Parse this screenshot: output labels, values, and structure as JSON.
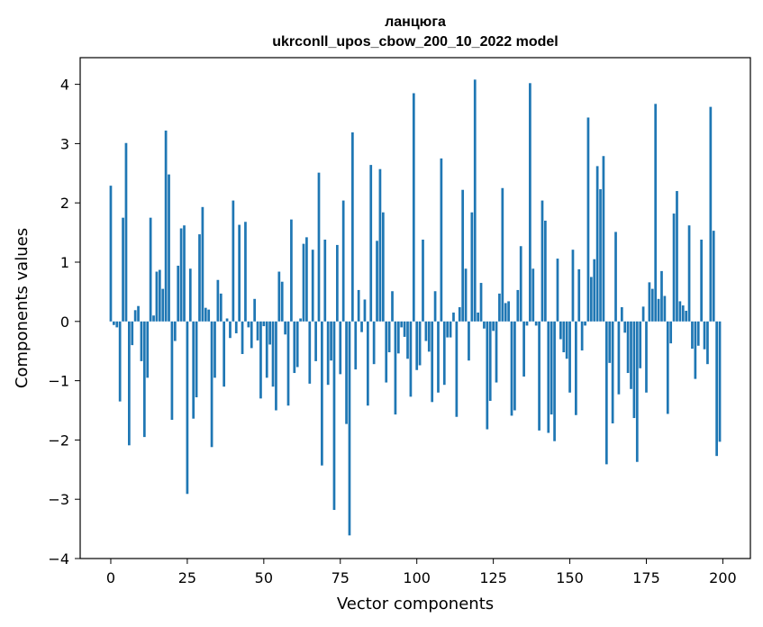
{
  "chart_data": {
    "type": "bar",
    "title": "ланцюга",
    "subtitle": "ukrconll_upos_cbow_200_10_2022 model",
    "xlabel": "Vector components",
    "ylabel": "Components values",
    "xlim": [
      -10,
      209
    ],
    "ylim": [
      -4,
      4.45
    ],
    "xticks": [
      0,
      25,
      50,
      75,
      100,
      125,
      150,
      175,
      200
    ],
    "yticks": [
      -4,
      -3,
      -2,
      -1,
      0,
      1,
      2,
      3,
      4
    ],
    "bar_color": "#1f77b4",
    "grid": false,
    "legend": "none",
    "x": [
      0,
      1,
      2,
      3,
      4,
      5,
      6,
      7,
      8,
      9,
      10,
      11,
      12,
      13,
      14,
      15,
      16,
      17,
      18,
      19,
      20,
      21,
      22,
      23,
      24,
      25,
      26,
      27,
      28,
      29,
      30,
      31,
      32,
      33,
      34,
      35,
      36,
      37,
      38,
      39,
      40,
      41,
      42,
      43,
      44,
      45,
      46,
      47,
      48,
      49,
      50,
      51,
      52,
      53,
      54,
      55,
      56,
      57,
      58,
      59,
      60,
      61,
      62,
      63,
      64,
      65,
      66,
      67,
      68,
      69,
      70,
      71,
      72,
      73,
      74,
      75,
      76,
      77,
      78,
      79,
      80,
      81,
      82,
      83,
      84,
      85,
      86,
      87,
      88,
      89,
      90,
      91,
      92,
      93,
      94,
      95,
      96,
      97,
      98,
      99,
      100,
      101,
      102,
      103,
      104,
      105,
      106,
      107,
      108,
      109,
      110,
      111,
      112,
      113,
      114,
      115,
      116,
      117,
      118,
      119,
      120,
      121,
      122,
      123,
      124,
      125,
      126,
      127,
      128,
      129,
      130,
      131,
      132,
      133,
      134,
      135,
      136,
      137,
      138,
      139,
      140,
      141,
      142,
      143,
      144,
      145,
      146,
      147,
      148,
      149,
      150,
      151,
      152,
      153,
      154,
      155,
      156,
      157,
      158,
      159,
      160,
      161,
      162,
      163,
      164,
      165,
      166,
      167,
      168,
      169,
      170,
      171,
      172,
      173,
      174,
      175,
      176,
      177,
      178,
      179,
      180,
      181,
      182,
      183,
      184,
      185,
      186,
      187,
      188,
      189,
      190,
      191,
      192,
      193,
      194,
      195,
      196,
      197,
      198,
      199
    ],
    "values": [
      2.29,
      -0.06,
      -0.1,
      -1.35,
      1.75,
      3.01,
      -2.09,
      -0.4,
      0.19,
      0.26,
      -0.67,
      -1.95,
      -0.95,
      1.75,
      0.1,
      0.84,
      0.87,
      0.55,
      3.22,
      2.48,
      -1.66,
      -0.33,
      0.94,
      1.57,
      1.62,
      -2.91,
      0.89,
      -1.64,
      -1.28,
      1.47,
      1.93,
      0.23,
      0.2,
      -2.12,
      -0.95,
      0.7,
      0.47,
      -1.1,
      0.05,
      -0.28,
      2.04,
      -0.2,
      1.63,
      -0.55,
      1.68,
      -0.1,
      -0.45,
      0.38,
      -0.32,
      -1.3,
      -0.08,
      -0.95,
      -0.39,
      -1.1,
      -1.5,
      0.84,
      0.67,
      -0.22,
      -1.42,
      1.72,
      -0.87,
      -0.77,
      0.05,
      1.31,
      1.42,
      -1.05,
      1.21,
      -0.67,
      2.51,
      -2.43,
      1.38,
      -1.07,
      -0.66,
      -3.18,
      1.29,
      -0.89,
      2.04,
      -1.73,
      -3.61,
      3.19,
      -0.81,
      0.53,
      -0.18,
      0.37,
      -1.42,
      2.64,
      -0.72,
      1.36,
      2.57,
      1.84,
      -1.03,
      -0.52,
      0.51,
      -1.57,
      -0.54,
      -0.1,
      -0.26,
      -0.63,
      -1.27,
      3.85,
      -0.82,
      -0.74,
      1.38,
      -0.33,
      -0.51,
      -1.36,
      0.51,
      -1.2,
      2.75,
      -1.07,
      -0.27,
      -0.27,
      0.15,
      -1.61,
      0.24,
      2.22,
      0.89,
      -0.66,
      1.84,
      4.08,
      0.15,
      0.65,
      -0.12,
      -1.82,
      -1.34,
      -0.16,
      -1.03,
      0.47,
      2.25,
      0.31,
      0.34,
      -1.59,
      -1.5,
      0.53,
      1.27,
      -0.93,
      -0.07,
      4.02,
      0.89,
      -0.07,
      -1.84,
      2.04,
      1.7,
      -1.88,
      -1.57,
      -2.02,
      1.06,
      -0.3,
      -0.52,
      -0.63,
      -1.2,
      1.21,
      -1.58,
      0.88,
      -0.49,
      -0.07,
      3.44,
      0.75,
      1.05,
      2.62,
      2.23,
      2.79,
      -2.41,
      -0.7,
      -1.72,
      1.51,
      -1.23,
      0.24,
      -0.19,
      -0.87,
      -1.14,
      -1.63,
      -2.37,
      -0.79,
      0.25,
      -1.2,
      0.66,
      0.55,
      3.67,
      0.38,
      0.85,
      0.43,
      -1.56,
      -0.37,
      1.82,
      2.2,
      0.34,
      0.27,
      0.18,
      1.62,
      -0.46,
      -0.97,
      -0.41,
      1.38,
      -0.47,
      -0.72,
      3.62,
      1.53,
      -2.27,
      -2.03
    ]
  }
}
